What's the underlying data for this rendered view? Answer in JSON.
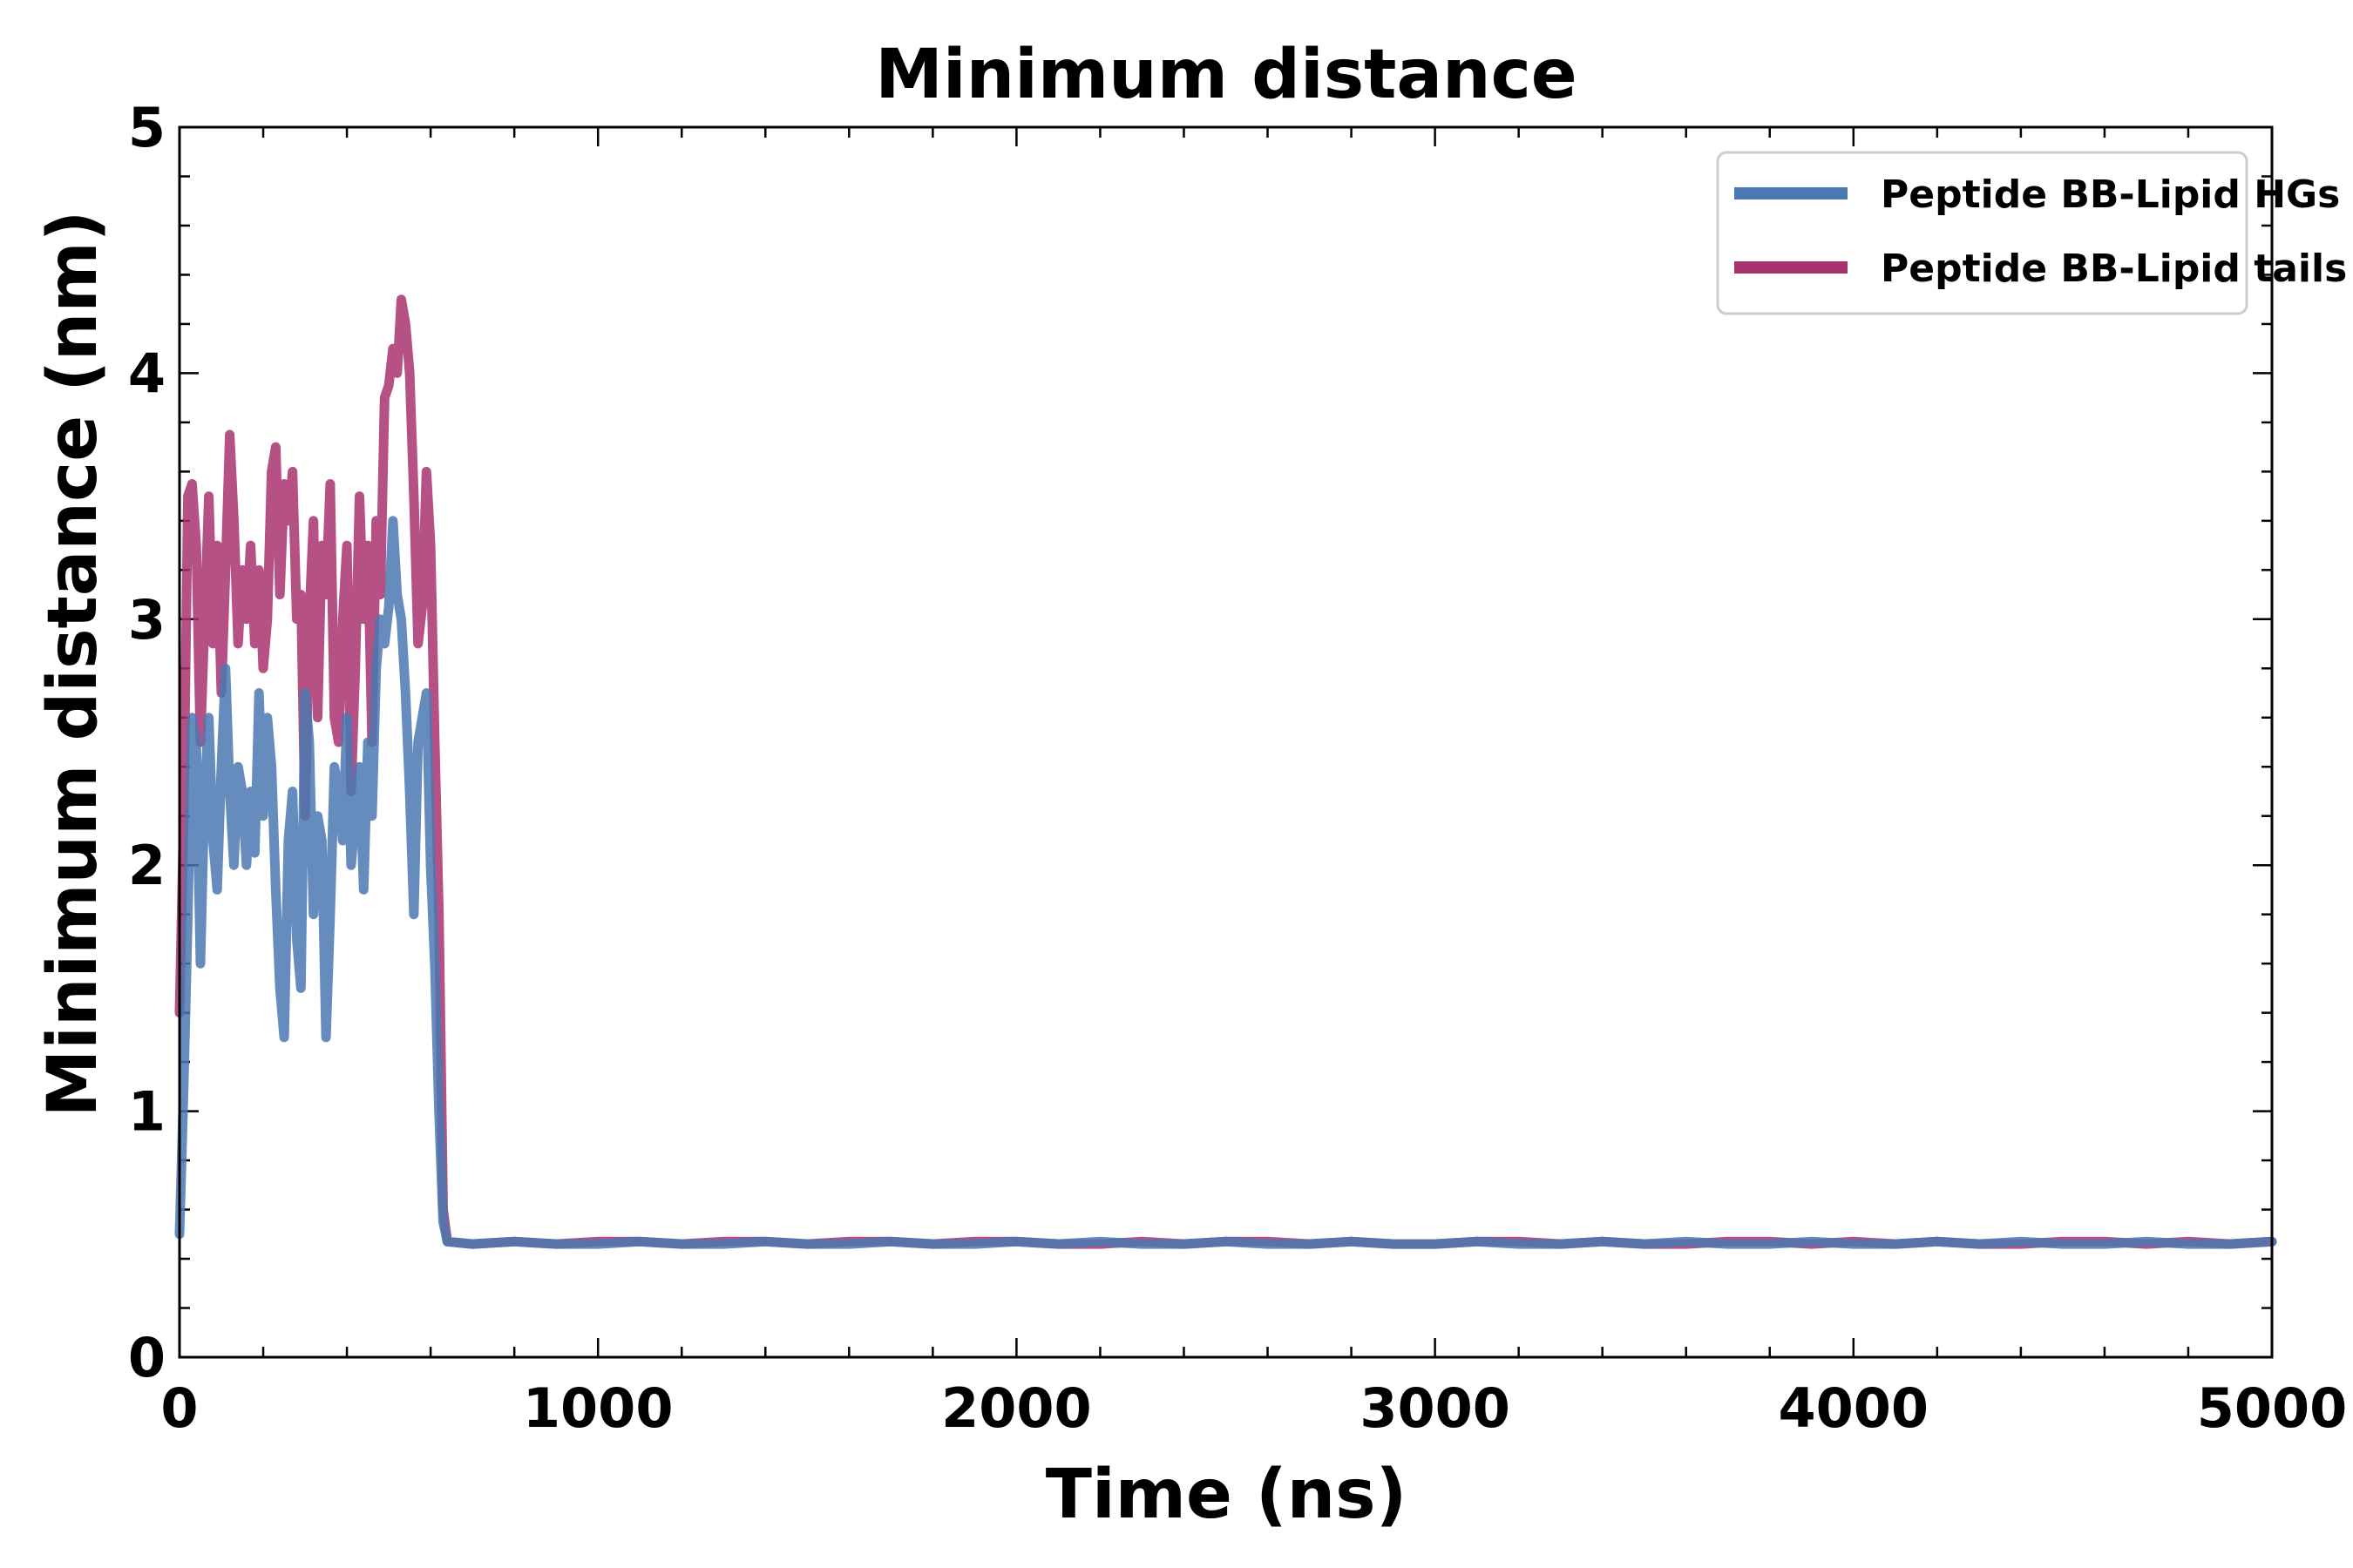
{
  "chart_data": {
    "type": "line",
    "title": "Minimum distance",
    "xlabel": "Time (ns)",
    "ylabel": "Minimum distance (nm)",
    "xlim": [
      0,
      5000
    ],
    "ylim": [
      0,
      5
    ],
    "xticks": [
      0,
      1000,
      2000,
      3000,
      4000,
      5000
    ],
    "yticks": [
      0,
      1,
      2,
      3,
      4,
      5
    ],
    "x_minor_step": 200,
    "y_minor_step": 0.2,
    "grid": false,
    "legend": "top-right",
    "series": [
      {
        "name": "Peptide BB-Lipid tails",
        "color": "#a8326e",
        "x": [
          0,
          10,
          20,
          30,
          40,
          50,
          60,
          70,
          80,
          90,
          100,
          110,
          120,
          130,
          140,
          150,
          160,
          170,
          180,
          190,
          200,
          210,
          220,
          230,
          240,
          250,
          260,
          270,
          280,
          290,
          300,
          310,
          320,
          330,
          340,
          350,
          360,
          370,
          380,
          390,
          400,
          410,
          420,
          430,
          440,
          450,
          460,
          470,
          480,
          490,
          500,
          510,
          520,
          530,
          540,
          550,
          560,
          570,
          580,
          590,
          600,
          610,
          620,
          630,
          640,
          700,
          800,
          900,
          1000,
          1100,
          1200,
          1300,
          1400,
          1500,
          1600,
          1700,
          1800,
          1900,
          2000,
          2100,
          2200,
          2300,
          2400,
          2500,
          2600,
          2700,
          2800,
          2900,
          3000,
          3100,
          3200,
          3300,
          3400,
          3500,
          3600,
          3700,
          3800,
          3900,
          4000,
          4100,
          4200,
          4300,
          4400,
          4500,
          4600,
          4700,
          4800,
          4900,
          5000
        ],
        "values": [
          1.4,
          2.2,
          3.5,
          3.55,
          3.3,
          2.5,
          3.0,
          3.5,
          2.9,
          3.3,
          2.7,
          3.2,
          3.75,
          3.4,
          2.9,
          3.2,
          3.0,
          3.3,
          2.9,
          3.2,
          2.8,
          3.0,
          3.6,
          3.7,
          3.1,
          3.55,
          3.4,
          3.6,
          3.0,
          3.1,
          2.2,
          3.0,
          3.4,
          2.6,
          3.3,
          3.1,
          3.55,
          2.6,
          2.5,
          3.0,
          3.3,
          2.3,
          2.8,
          3.5,
          3.0,
          3.3,
          2.5,
          3.4,
          3.1,
          3.9,
          3.95,
          4.1,
          4.0,
          4.3,
          4.2,
          4.0,
          3.5,
          2.9,
          3.05,
          3.6,
          3.3,
          2.5,
          1.8,
          0.6,
          0.47,
          0.46,
          0.47,
          0.46,
          0.47,
          0.47,
          0.46,
          0.47,
          0.47,
          0.46,
          0.47,
          0.47,
          0.46,
          0.47,
          0.47,
          0.46,
          0.46,
          0.47,
          0.46,
          0.47,
          0.47,
          0.46,
          0.47,
          0.46,
          0.46,
          0.47,
          0.47,
          0.46,
          0.47,
          0.46,
          0.46,
          0.47,
          0.47,
          0.46,
          0.47,
          0.46,
          0.47,
          0.46,
          0.46,
          0.47,
          0.47,
          0.46,
          0.47,
          0.46,
          0.47
        ]
      },
      {
        "name": "Peptide BB-Lipid HGs",
        "color": "#4a78b0",
        "x": [
          0,
          10,
          20,
          30,
          40,
          50,
          60,
          70,
          80,
          90,
          100,
          110,
          120,
          130,
          140,
          150,
          160,
          170,
          180,
          190,
          200,
          210,
          220,
          230,
          240,
          250,
          260,
          270,
          280,
          290,
          300,
          310,
          320,
          330,
          340,
          350,
          360,
          370,
          380,
          390,
          400,
          410,
          420,
          430,
          440,
          450,
          460,
          470,
          480,
          490,
          500,
          510,
          520,
          530,
          540,
          550,
          560,
          570,
          580,
          590,
          600,
          610,
          620,
          630,
          640,
          700,
          800,
          900,
          1000,
          1100,
          1200,
          1300,
          1400,
          1500,
          1600,
          1700,
          1800,
          1900,
          2000,
          2100,
          2200,
          2300,
          2400,
          2500,
          2600,
          2700,
          2800,
          2900,
          3000,
          3100,
          3200,
          3300,
          3400,
          3500,
          3600,
          3700,
          3800,
          3900,
          4000,
          4100,
          4200,
          4300,
          4400,
          4500,
          4600,
          4700,
          4800,
          4900,
          5000
        ],
        "values": [
          0.5,
          1.1,
          1.8,
          2.6,
          2.5,
          1.6,
          2.3,
          2.6,
          2.1,
          1.9,
          2.4,
          2.8,
          2.3,
          2.0,
          2.4,
          2.3,
          2.0,
          2.3,
          2.05,
          2.7,
          2.2,
          2.6,
          2.4,
          1.9,
          1.5,
          1.3,
          2.1,
          2.3,
          1.7,
          1.5,
          2.7,
          2.5,
          1.8,
          2.2,
          2.1,
          1.3,
          1.8,
          2.4,
          2.3,
          2.1,
          2.6,
          2.0,
          2.2,
          2.4,
          1.9,
          2.5,
          2.2,
          2.8,
          3.0,
          2.9,
          3.05,
          3.4,
          3.1,
          3.0,
          2.7,
          2.3,
          1.8,
          2.5,
          2.6,
          2.7,
          2.0,
          1.6,
          1.0,
          0.55,
          0.47,
          0.46,
          0.47,
          0.46,
          0.46,
          0.47,
          0.46,
          0.46,
          0.47,
          0.46,
          0.46,
          0.47,
          0.46,
          0.46,
          0.47,
          0.46,
          0.47,
          0.46,
          0.46,
          0.47,
          0.46,
          0.46,
          0.47,
          0.46,
          0.46,
          0.47,
          0.46,
          0.46,
          0.47,
          0.46,
          0.47,
          0.46,
          0.46,
          0.47,
          0.46,
          0.46,
          0.47,
          0.46,
          0.47,
          0.46,
          0.46,
          0.47,
          0.46,
          0.46,
          0.47
        ]
      }
    ],
    "legend_order": [
      "Peptide BB-Lipid HGs",
      "Peptide BB-Lipid tails"
    ]
  }
}
